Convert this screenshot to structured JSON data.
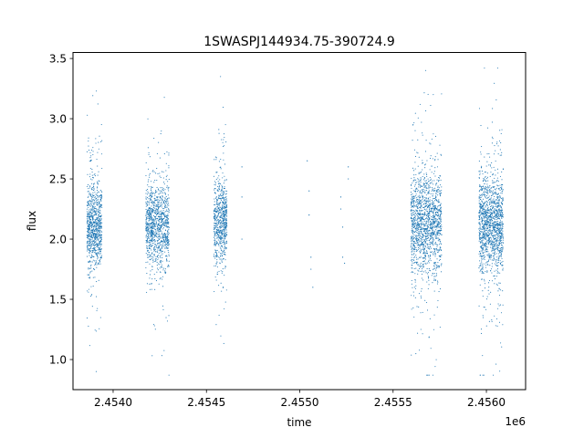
{
  "chart_data": {
    "type": "scatter",
    "title": "1SWASPJ144934.75-390724.9",
    "xlabel": "time",
    "ylabel": "flux",
    "x_offset_label": "1e6",
    "xlim": [
      2453785,
      2456210
    ],
    "ylim": [
      0.75,
      3.55
    ],
    "x_ticks": [
      2453.5,
      2454.0,
      2454.5,
      2455.0,
      2455.5,
      2456.0
    ],
    "x_tick_labels": [
      "2.4540",
      "2.4545",
      "2.4550",
      "2.4555",
      "2.4560"
    ],
    "x_tick_values": [
      2454000,
      2454500,
      2455000,
      2455500,
      2456000
    ],
    "y_tick_values": [
      1.0,
      1.5,
      2.0,
      2.5,
      3.0,
      3.5
    ],
    "y_tick_labels": [
      "1.0",
      "1.5",
      "2.0",
      "2.5",
      "3.0",
      "3.5"
    ],
    "grid": false,
    "color": "#1f77b4",
    "series": [
      {
        "clusters": [
          {
            "x_start": 2453860,
            "x_end": 2453940,
            "y_center": 2.1,
            "y_core_spread": 0.18,
            "y_min": 0.9,
            "y_max": 3.4,
            "n": 900
          },
          {
            "x_start": 2454175,
            "x_end": 2454300,
            "y_center": 2.12,
            "y_core_spread": 0.17,
            "y_min": 0.87,
            "y_max": 3.4,
            "n": 1100
          },
          {
            "x_start": 2454540,
            "x_end": 2454610,
            "y_center": 2.15,
            "y_core_spread": 0.17,
            "y_min": 0.87,
            "y_max": 3.35,
            "n": 700
          },
          {
            "x_start": 2455595,
            "x_end": 2455760,
            "y_center": 2.12,
            "y_core_spread": 0.2,
            "y_min": 0.87,
            "y_max": 3.4,
            "n": 1500
          },
          {
            "x_start": 2455960,
            "x_end": 2456090,
            "y_center": 2.13,
            "y_core_spread": 0.2,
            "y_min": 0.87,
            "y_max": 3.42,
            "n": 1400
          }
        ],
        "sparse_points": [
          [
            2454690,
            2.6
          ],
          [
            2454690,
            2.35
          ],
          [
            2454690,
            2.0
          ],
          [
            2455040,
            2.65
          ],
          [
            2455050,
            2.4
          ],
          [
            2455050,
            2.2
          ],
          [
            2455060,
            1.85
          ],
          [
            2455060,
            1.75
          ],
          [
            2455070,
            1.6
          ],
          [
            2455220,
            2.35
          ],
          [
            2455220,
            2.25
          ],
          [
            2455230,
            2.1
          ],
          [
            2455230,
            1.85
          ],
          [
            2455240,
            1.8
          ],
          [
            2455260,
            2.6
          ],
          [
            2455260,
            2.5
          ]
        ]
      }
    ]
  }
}
